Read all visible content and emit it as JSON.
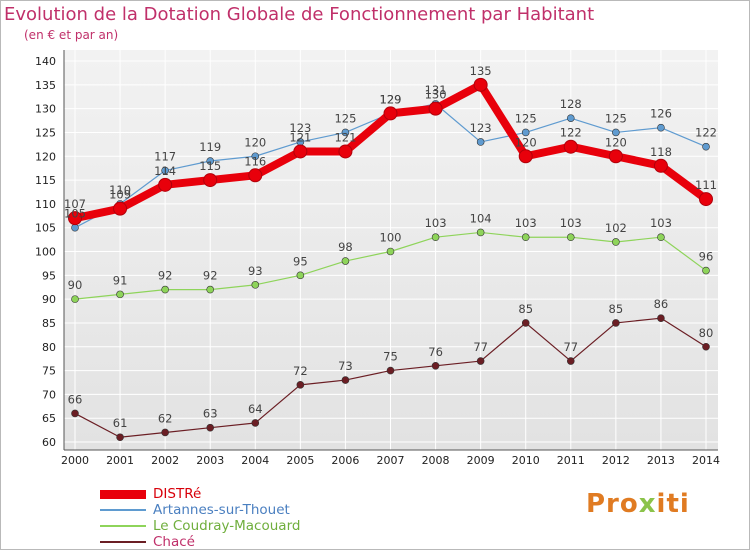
{
  "title": "Evolution de la Dotation Globale de Fonctionnement par Habitant",
  "subtitle": "(en € et par an)",
  "logo": {
    "p1": "Pro",
    "p2": "x",
    "p3": "iti"
  },
  "chart_data": {
    "type": "line",
    "title": "Evolution de la Dotation Globale de Fonctionnement par Habitant",
    "subtitle": "(en € et par an)",
    "x": [
      2000,
      2001,
      2002,
      2003,
      2004,
      2005,
      2006,
      2007,
      2008,
      2009,
      2010,
      2011,
      2012,
      2013,
      2014
    ],
    "ylim": [
      60,
      140
    ],
    "yticks": [
      60,
      65,
      70,
      75,
      80,
      85,
      90,
      95,
      100,
      105,
      110,
      115,
      120,
      125,
      130,
      135,
      140
    ],
    "grid": true,
    "legend_position": "bottom-left",
    "series": [
      {
        "name": "DISTRé",
        "color": "#e8000b",
        "emphasis": true,
        "values": [
          107,
          109,
          114,
          115,
          116,
          121,
          121,
          129,
          130,
          135,
          120,
          122,
          120,
          118,
          111
        ]
      },
      {
        "name": "Artannes-sur-Thouet",
        "color": "#5f9bd0",
        "values": [
          105,
          110,
          117,
          119,
          120,
          123,
          125,
          129,
          131,
          123,
          125,
          128,
          125,
          126,
          122
        ]
      },
      {
        "name": "Le Coudray-Macouard",
        "color": "#8ed45a",
        "values": [
          90,
          91,
          92,
          92,
          93,
          95,
          98,
          100,
          103,
          104,
          103,
          103,
          102,
          103,
          96
        ]
      },
      {
        "name": "Chacé",
        "color": "#6b1e24",
        "values": [
          66,
          61,
          62,
          63,
          64,
          72,
          73,
          75,
          76,
          77,
          85,
          77,
          85,
          86,
          80
        ]
      }
    ]
  }
}
